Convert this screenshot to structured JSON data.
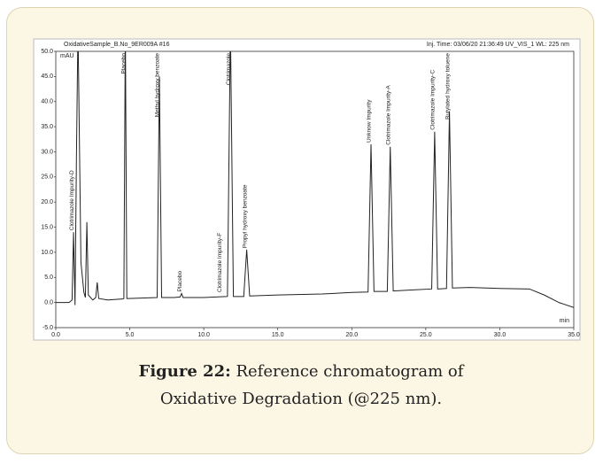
{
  "chart_data": {
    "type": "line",
    "header_left": "OxidativeSample_B.No_9ER009A #16",
    "header_right": "Inj. Time: 03/06/20 21:36:49 UV_VIS_1 WL: 225 nm",
    "ylabel": "mAU",
    "xlabel": "min",
    "xlim": [
      0,
      35
    ],
    "ylim": [
      -5,
      50
    ],
    "xticks": [
      {
        "value": 0,
        "label": "0.0"
      },
      {
        "value": 5,
        "label": "5.0"
      },
      {
        "value": 10,
        "label": "10.0"
      },
      {
        "value": 15,
        "label": "15.0"
      },
      {
        "value": 20,
        "label": "20.0"
      },
      {
        "value": 25,
        "label": "25.0"
      },
      {
        "value": 30,
        "label": "30.0"
      },
      {
        "value": 35,
        "label": "35.0"
      }
    ],
    "yticks": [
      {
        "value": -5,
        "label": "-5.0"
      },
      {
        "value": 0,
        "label": "0.0"
      },
      {
        "value": 5,
        "label": "5.0"
      },
      {
        "value": 10,
        "label": "10.0"
      },
      {
        "value": 15,
        "label": "15.0"
      },
      {
        "value": 20,
        "label": "20.0"
      },
      {
        "value": 25,
        "label": "25.0"
      },
      {
        "value": 30,
        "label": "30.0"
      },
      {
        "value": 35,
        "label": "35.0"
      },
      {
        "value": 40,
        "label": "40.0"
      },
      {
        "value": 45,
        "label": "45.0"
      },
      {
        "value": 50,
        "label": "50.0"
      }
    ],
    "series": [
      {
        "color": "#222222",
        "x": [
          0,
          0.9,
          1.1,
          1.2,
          1.3,
          1.4,
          1.5,
          1.7,
          1.9,
          2.0,
          2.1,
          2.2,
          2.5,
          2.7,
          2.8,
          2.9,
          3.5,
          4.5,
          4.6,
          4.7,
          4.8,
          4.9,
          6.0,
          6.85,
          7.0,
          7.15,
          8.0,
          8.4,
          8.5,
          8.6,
          10.0,
          11.6,
          11.8,
          12.0,
          12.7,
          12.9,
          13.1,
          15,
          18,
          20,
          21.1,
          21.3,
          21.5,
          22.4,
          22.6,
          22.8,
          24,
          25.4,
          25.6,
          25.8,
          26.4,
          26.6,
          26.8,
          28,
          30,
          32,
          33,
          34,
          35
        ],
        "values": [
          0,
          0,
          0.5,
          14,
          -0.5,
          30,
          55,
          8,
          2,
          1,
          16,
          1.5,
          0.5,
          1,
          4,
          0.8,
          0.5,
          0.7,
          0.8,
          55,
          0.8,
          0.8,
          0.9,
          1.0,
          45,
          1.0,
          1.0,
          1.1,
          1.8,
          1.0,
          1.0,
          1.2,
          55,
          1.2,
          1.2,
          10.5,
          1.3,
          1.5,
          1.7,
          2.0,
          2.1,
          31.5,
          2.2,
          2.2,
          31,
          2.3,
          2.5,
          2.7,
          34,
          2.7,
          2.8,
          38,
          2.9,
          3.0,
          2.8,
          2.7,
          1.5,
          0,
          -1
        ]
      }
    ],
    "annotations": [
      {
        "text": "Clotrimazole Impurity-D",
        "x": 1.2
      },
      {
        "text": "Placebo",
        "x": 4.7
      },
      {
        "text": "Methyl hydroxy benzoate",
        "x": 7.0
      },
      {
        "text": "Placebo",
        "x": 8.5
      },
      {
        "text": "Clotrimazole Impurity-F",
        "x": 11.2
      },
      {
        "text": "Clotrimazole",
        "x": 11.8
      },
      {
        "text": "Propyl hydroxy benzoate",
        "x": 12.9
      },
      {
        "text": "Unknow Impurity",
        "x": 21.3
      },
      {
        "text": "Clotrimazole Impurity-A",
        "x": 22.6
      },
      {
        "text": "Clotrimazole Impurity-C",
        "x": 25.6
      },
      {
        "text": "Butylated hydroxy toluene",
        "x": 26.6
      }
    ]
  },
  "caption": {
    "label": "Figure 22:",
    "text": "Reference chromatogram of Oxidative Degradation (@225 nm)."
  }
}
